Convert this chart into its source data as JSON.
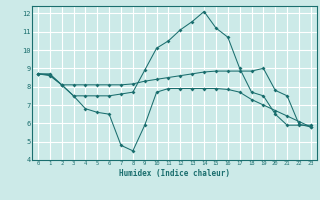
{
  "xlabel": "Humidex (Indice chaleur)",
  "bg_color": "#cceae8",
  "grid_color": "#ffffff",
  "line_color": "#1a6e6e",
  "xlim": [
    -0.5,
    23.5
  ],
  "ylim": [
    4,
    12.4
  ],
  "xticks": [
    0,
    1,
    2,
    3,
    4,
    5,
    6,
    7,
    8,
    9,
    10,
    11,
    12,
    13,
    14,
    15,
    16,
    17,
    18,
    19,
    20,
    21,
    22,
    23
  ],
  "yticks": [
    4,
    5,
    6,
    7,
    8,
    9,
    10,
    11,
    12
  ],
  "line1_x": [
    0,
    1,
    2,
    3,
    4,
    5,
    6,
    7,
    8,
    9,
    10,
    11,
    12,
    13,
    14,
    15,
    16,
    17,
    18,
    19,
    20,
    21,
    22,
    23
  ],
  "line1_y": [
    8.7,
    8.7,
    8.1,
    7.5,
    7.5,
    7.5,
    7.5,
    7.6,
    7.7,
    8.9,
    10.1,
    10.5,
    11.1,
    11.55,
    12.1,
    11.2,
    10.7,
    9.0,
    7.7,
    7.5,
    6.5,
    5.9,
    5.9,
    5.9
  ],
  "line2_x": [
    0,
    1,
    2,
    3,
    4,
    5,
    6,
    7,
    8,
    9,
    10,
    11,
    12,
    13,
    14,
    15,
    16,
    17,
    18,
    19,
    20,
    21,
    22,
    23
  ],
  "line2_y": [
    8.7,
    8.65,
    8.1,
    8.1,
    8.1,
    8.1,
    8.1,
    8.1,
    8.15,
    8.3,
    8.4,
    8.5,
    8.6,
    8.7,
    8.8,
    8.85,
    8.85,
    8.85,
    8.85,
    9.0,
    7.8,
    7.5,
    5.95,
    5.8
  ],
  "line3_x": [
    0,
    1,
    2,
    3,
    4,
    5,
    6,
    7,
    8,
    9,
    10,
    11,
    12,
    13,
    14,
    15,
    16,
    17,
    18,
    19,
    20,
    21,
    22,
    23
  ],
  "line3_y": [
    8.7,
    8.6,
    8.1,
    7.5,
    6.8,
    6.6,
    6.5,
    4.8,
    4.5,
    5.9,
    7.7,
    7.9,
    7.9,
    7.9,
    7.9,
    7.9,
    7.85,
    7.7,
    7.3,
    7.0,
    6.7,
    6.4,
    6.1,
    5.8
  ]
}
